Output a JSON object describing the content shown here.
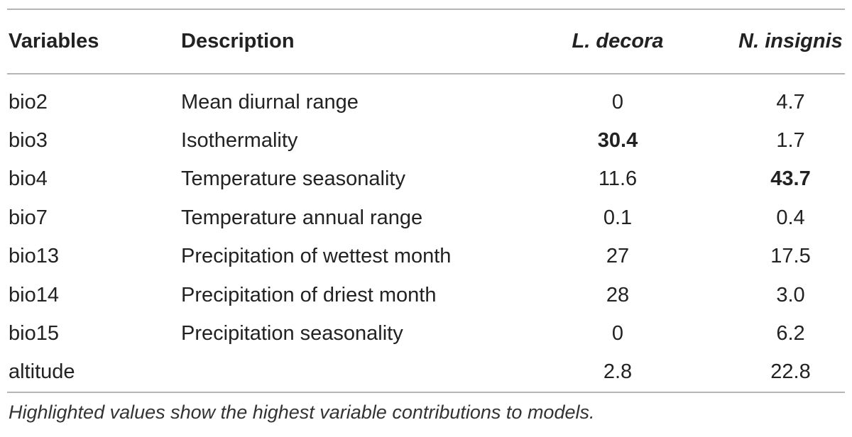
{
  "table": {
    "headers": {
      "variables": "Variables",
      "description": "Description",
      "l_decora": "L. decora",
      "n_insignis": "N. insignis"
    },
    "rows": [
      {
        "variable": "bio2",
        "description": "Mean diurnal range",
        "l_decora": "0",
        "n_insignis": "4.7",
        "highlight": ""
      },
      {
        "variable": "bio3",
        "description": "Isothermality",
        "l_decora": "30.4",
        "n_insignis": "1.7",
        "highlight": "l_decora"
      },
      {
        "variable": "bio4",
        "description": "Temperature seasonality",
        "l_decora": "11.6",
        "n_insignis": "43.7",
        "highlight": "n_insignis"
      },
      {
        "variable": "bio7",
        "description": "Temperature annual range",
        "l_decora": "0.1",
        "n_insignis": "0.4",
        "highlight": ""
      },
      {
        "variable": "bio13",
        "description": "Precipitation of wettest month",
        "l_decora": "27",
        "n_insignis": "17.5",
        "highlight": ""
      },
      {
        "variable": "bio14",
        "description": "Precipitation of driest month",
        "l_decora": "28",
        "n_insignis": "3.0",
        "highlight": ""
      },
      {
        "variable": "bio15",
        "description": "Precipitation seasonality",
        "l_decora": "0",
        "n_insignis": "6.2",
        "highlight": ""
      },
      {
        "variable": "altitude",
        "description": "",
        "l_decora": "2.8",
        "n_insignis": "22.8",
        "highlight": ""
      }
    ]
  },
  "footnote": "Highlighted values show the highest variable contributions to models.",
  "colors": {
    "text": "#222222",
    "rule": "#b5b5b5"
  }
}
